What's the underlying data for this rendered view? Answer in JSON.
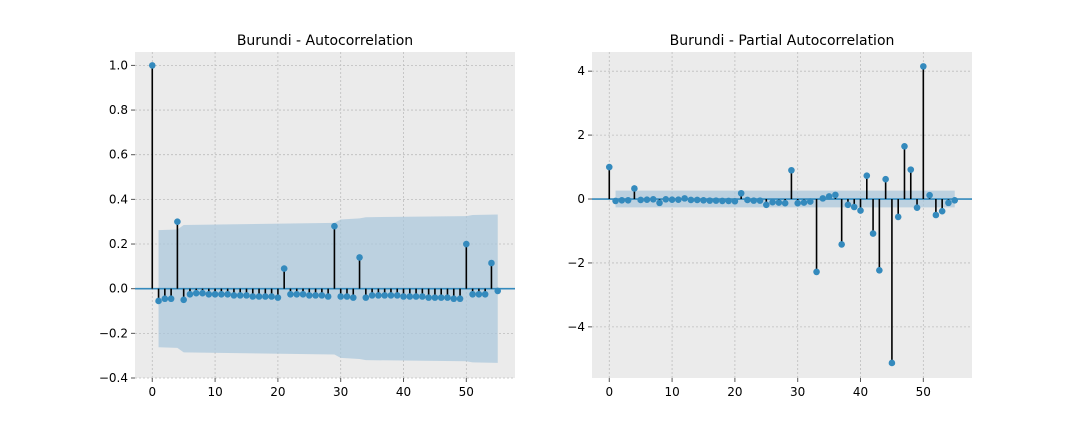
{
  "colors": {
    "panel_bg": "#ebebeb",
    "grid": "#bdbdbd",
    "marker": "#348abd",
    "stem": "#000000",
    "baseline": "#348abd",
    "confidence_band": "#a8c6dc"
  },
  "chart_data": [
    {
      "type": "stem",
      "title": "Burundi - Autocorrelation",
      "xlabel": "",
      "ylabel": "",
      "xlim": [
        -2.75,
        57.75
      ],
      "ylim": [
        -0.4,
        1.06
      ],
      "xticks": [
        "0",
        "10",
        "20",
        "30",
        "40",
        "50"
      ],
      "yticks": [
        "−0.4",
        "−0.2",
        "0.0",
        "0.2",
        "0.4",
        "0.6",
        "0.8",
        "1.0"
      ],
      "grid": true,
      "lags": [
        0,
        1,
        2,
        3,
        4,
        5,
        6,
        7,
        8,
        9,
        10,
        11,
        12,
        13,
        14,
        15,
        16,
        17,
        18,
        19,
        20,
        21,
        22,
        23,
        24,
        25,
        26,
        27,
        28,
        29,
        30,
        31,
        32,
        33,
        34,
        35,
        36,
        37,
        38,
        39,
        40,
        41,
        42,
        43,
        44,
        45,
        46,
        47,
        48,
        49,
        50,
        51,
        52,
        53,
        54,
        55
      ],
      "values": [
        1.0,
        -0.055,
        -0.045,
        -0.045,
        0.3,
        -0.05,
        -0.025,
        -0.02,
        -0.02,
        -0.025,
        -0.025,
        -0.025,
        -0.025,
        -0.03,
        -0.03,
        -0.03,
        -0.035,
        -0.035,
        -0.035,
        -0.035,
        -0.04,
        0.09,
        -0.025,
        -0.025,
        -0.025,
        -0.03,
        -0.03,
        -0.03,
        -0.035,
        0.28,
        -0.035,
        -0.035,
        -0.04,
        0.14,
        -0.04,
        -0.03,
        -0.03,
        -0.03,
        -0.03,
        -0.03,
        -0.035,
        -0.035,
        -0.035,
        -0.035,
        -0.04,
        -0.04,
        -0.04,
        -0.04,
        -0.045,
        -0.045,
        0.2,
        -0.025,
        -0.025,
        -0.025,
        0.115,
        -0.01
      ],
      "confidence_band": {
        "lags": [
          1,
          4,
          5,
          29,
          30,
          33,
          34,
          50,
          51,
          55
        ],
        "upper": [
          0.262,
          0.265,
          0.285,
          0.295,
          0.31,
          0.315,
          0.32,
          0.325,
          0.33,
          0.332
        ],
        "lower": [
          -0.262,
          -0.265,
          -0.285,
          -0.295,
          -0.31,
          -0.315,
          -0.32,
          -0.325,
          -0.33,
          -0.332
        ]
      }
    },
    {
      "type": "stem",
      "title": "Burundi - Partial Autocorrelation",
      "xlabel": "",
      "ylabel": "",
      "xlim": [
        -2.75,
        57.75
      ],
      "ylim": [
        -5.6,
        4.6
      ],
      "xticks": [
        "0",
        "10",
        "20",
        "30",
        "40",
        "50"
      ],
      "yticks": [
        "−4",
        "−2",
        "0",
        "2",
        "4"
      ],
      "grid": true,
      "lags": [
        0,
        1,
        2,
        3,
        4,
        5,
        6,
        7,
        8,
        9,
        10,
        11,
        12,
        13,
        14,
        15,
        16,
        17,
        18,
        19,
        20,
        21,
        22,
        23,
        24,
        25,
        26,
        27,
        28,
        29,
        30,
        31,
        32,
        33,
        34,
        35,
        36,
        37,
        38,
        39,
        40,
        41,
        42,
        43,
        44,
        45,
        46,
        47,
        48,
        49,
        50,
        51,
        52,
        53,
        54,
        55
      ],
      "values": [
        1.0,
        -0.06,
        -0.04,
        -0.04,
        0.33,
        -0.03,
        -0.02,
        -0.01,
        -0.12,
        -0.01,
        -0.02,
        -0.02,
        0.02,
        -0.03,
        -0.03,
        -0.04,
        -0.05,
        -0.05,
        -0.06,
        -0.06,
        -0.07,
        0.18,
        -0.03,
        -0.05,
        -0.05,
        -0.18,
        -0.1,
        -0.11,
        -0.13,
        0.9,
        -0.13,
        -0.11,
        -0.08,
        -2.28,
        0.02,
        0.08,
        0.13,
        -1.42,
        -0.18,
        -0.25,
        -0.36,
        0.73,
        -1.08,
        -2.23,
        0.62,
        -5.13,
        -0.56,
        1.65,
        0.92,
        -0.27,
        4.15,
        0.12,
        -0.5,
        -0.38,
        -0.12,
        -0.04
      ],
      "confidence_band": {
        "lags": [
          1,
          55
        ],
        "upper": [
          0.262,
          0.262
        ],
        "lower": [
          -0.262,
          -0.262
        ]
      }
    }
  ]
}
